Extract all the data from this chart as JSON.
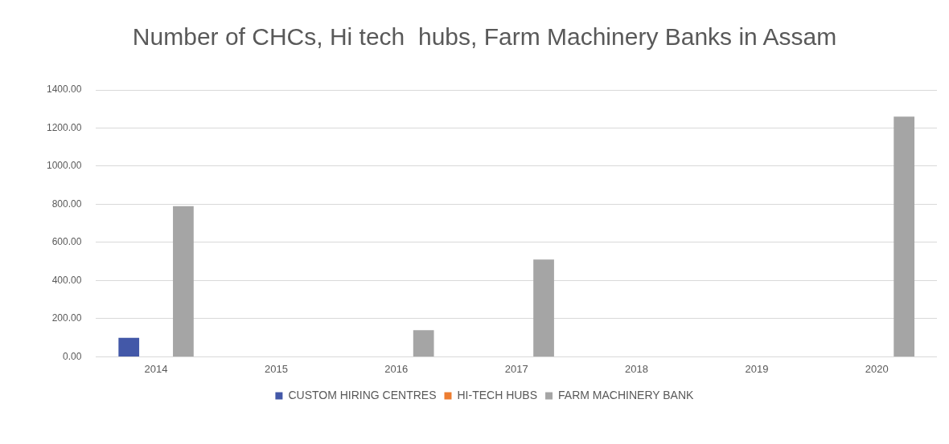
{
  "chart_data": {
    "type": "bar",
    "title": "Number of CHCs, Hi tech  hubs, Farm Machinery Banks in Assam",
    "categories": [
      "2014",
      "2015",
      "2016",
      "2017",
      "2018",
      "2019",
      "2020"
    ],
    "series": [
      {
        "name": "CUSTOM HIRING CENTRES",
        "color": "#4358a8",
        "values": [
          100,
          null,
          null,
          null,
          null,
          null,
          null
        ]
      },
      {
        "name": "HI-TECH HUBS",
        "color": "#ed7d31",
        "values": [
          null,
          null,
          null,
          null,
          null,
          null,
          null
        ]
      },
      {
        "name": "FARM MACHINERY BANK",
        "color": "#a5a5a5",
        "values": [
          790,
          null,
          140,
          510,
          null,
          null,
          1260
        ]
      }
    ],
    "ylim": [
      0,
      1400
    ],
    "yticks": [
      {
        "value": 0,
        "label": "0.00"
      },
      {
        "value": 200,
        "label": "200.00"
      },
      {
        "value": 400,
        "label": "400.00"
      },
      {
        "value": 600,
        "label": "600.00"
      },
      {
        "value": 800,
        "label": "800.00"
      },
      {
        "value": 1000,
        "label": "1000.00"
      },
      {
        "value": 1200,
        "label": "1200.00"
      },
      {
        "value": 1400,
        "label": "1400.00"
      }
    ],
    "grid": "y",
    "legend": "bottom"
  }
}
